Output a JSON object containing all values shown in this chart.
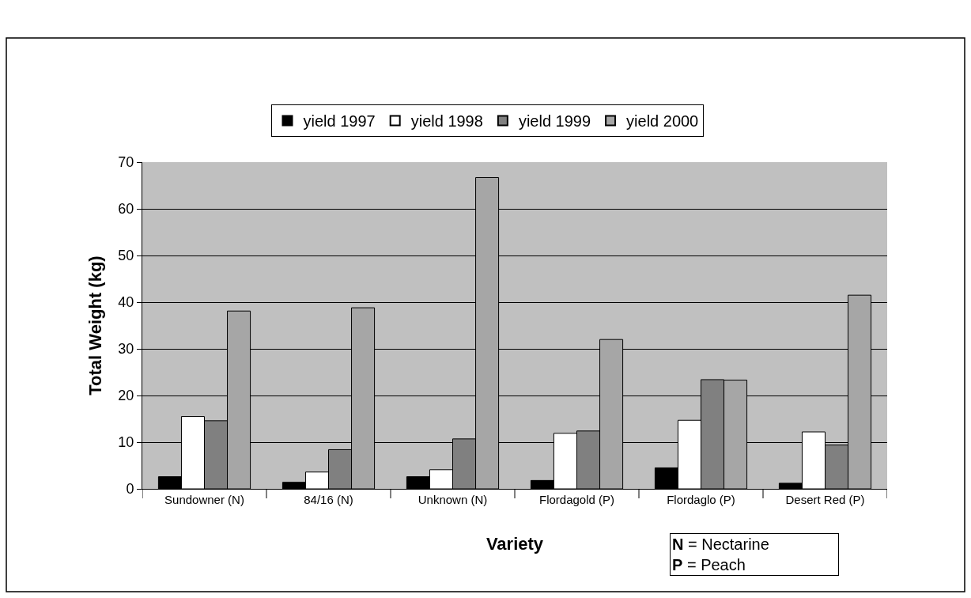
{
  "chart_data": {
    "type": "bar",
    "xlabel": "Variety",
    "ylabel": "Total Weight (kg)",
    "categories": [
      "Sundowner (N)",
      "84/16 (N)",
      "Unknown (N)",
      "Flordagold (P)",
      "Flordaglo (P)",
      "Desert Red (P)"
    ],
    "series": [
      {
        "name": "yield 1997",
        "color": "#000000",
        "values": [
          2.6,
          1.4,
          2.6,
          1.8,
          4.5,
          1.2
        ]
      },
      {
        "name": "yield 1998",
        "color": "#ffffff",
        "values": [
          15.5,
          3.6,
          4.1,
          11.9,
          14.7,
          12.2
        ]
      },
      {
        "name": "yield 1999",
        "color": "#808080",
        "values": [
          14.6,
          8.4,
          10.7,
          12.4,
          23.4,
          9.4
        ]
      },
      {
        "name": "yield 2000",
        "color": "#a6a6a6",
        "values": [
          38.1,
          38.8,
          66.7,
          32.0,
          23.3,
          41.5
        ]
      }
    ],
    "ylim": [
      0,
      70
    ],
    "yticks": [
      0,
      10,
      20,
      30,
      40,
      50,
      60,
      70
    ],
    "grid": "y",
    "legend": "top",
    "annotations": [
      "N = Nectarine",
      "P = Peach"
    ]
  }
}
